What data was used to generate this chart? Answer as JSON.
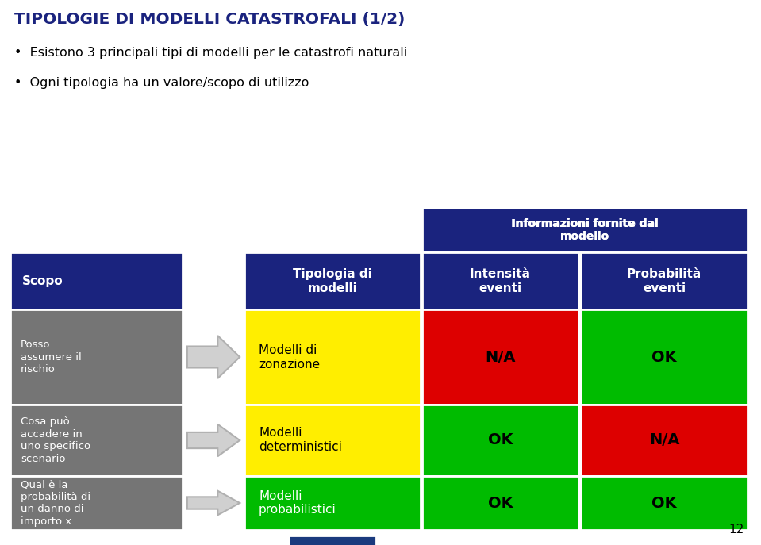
{
  "title": "TIPOLOGIE DI MODELLI CATASTROFALI (1/2)",
  "bullet1": "Esistono 3 principali tipi di modelli per le catastrofi naturali",
  "bullet2": "Ogni tipologia ha un valore/scopo di utilizzo",
  "header_info": "Informazioni fornite dal\nmodello",
  "col_headers": [
    "Scopo",
    "Tipologia di\nmodelli",
    "Intensità\neventi",
    "Probabilità\neventi"
  ],
  "rows": [
    {
      "scopo": "Posso\nassumere il\nrischio",
      "tipologia": "Modelli di\nzonazione",
      "tipologia_bg": "#ffee00",
      "intensita_color": "#dd0000",
      "intensita_text": "N/A",
      "probabilita_color": "#00bb00",
      "probabilita_text": "OK"
    },
    {
      "scopo": "Cosa può\naccadere in\nuno specifico\nscenario",
      "tipologia": "Modelli\ndeterministici",
      "tipologia_bg": "#ffee00",
      "intensita_color": "#00bb00",
      "intensita_text": "OK",
      "probabilita_color": "#dd0000",
      "probabilita_text": "N/A"
    },
    {
      "scopo": "Qual è la\nprobabilità di\nun danno di\nimporto x",
      "tipologia": "Modelli\nprobabilistici",
      "tipologia_bg": "#00bb00",
      "intensita_color": "#00bb00",
      "intensita_text": "OK",
      "probabilita_color": "#00bb00",
      "probabilita_text": "OK"
    }
  ],
  "header_bg": "#1a237e",
  "header_text_color": "#ffffff",
  "scopo_bg": "#757575",
  "scopo_text_color": "#ffffff",
  "bg_color": "#ffffff",
  "page_number": "12",
  "title_color": "#1a237e"
}
